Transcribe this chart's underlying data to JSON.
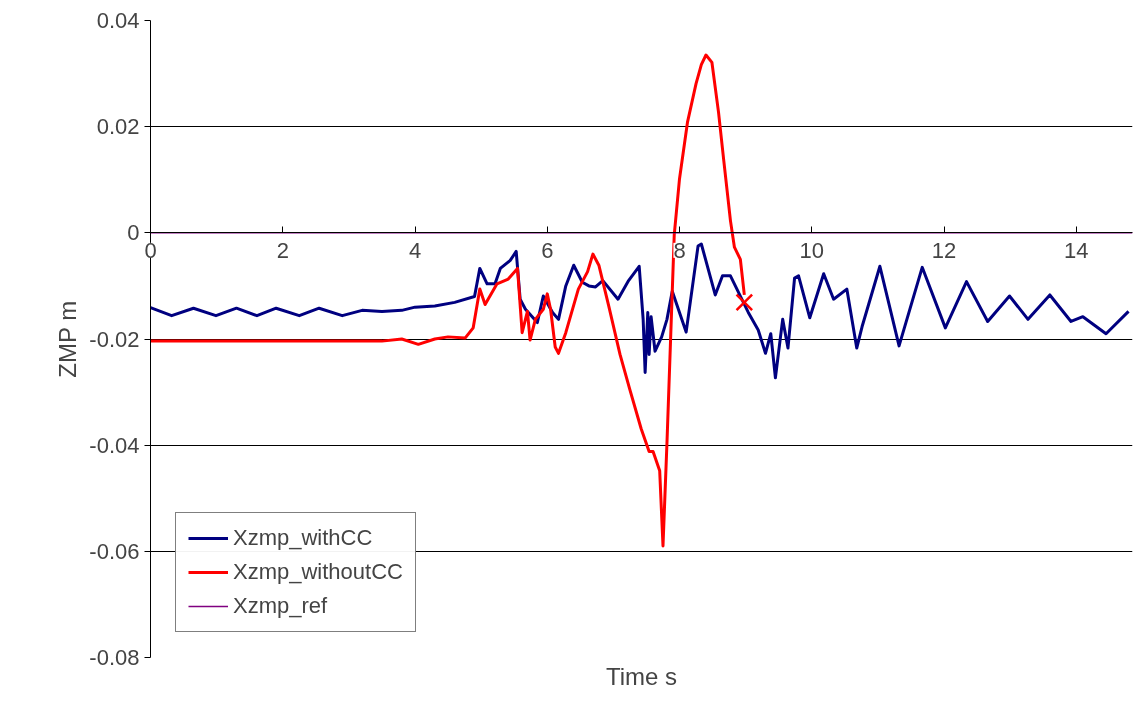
{
  "chart_data": {
    "type": "line",
    "xlabel": "Time s",
    "ylabel": "ZMP m",
    "xlim": [
      0,
      14.85
    ],
    "xticks": [
      0,
      2,
      4,
      6,
      8,
      10,
      12,
      14
    ],
    "ylim": [
      -0.08,
      0.04
    ],
    "yticks": [
      -0.08,
      -0.06,
      -0.04,
      -0.02,
      0,
      0.02,
      0.04
    ],
    "grid": "y",
    "legend": "bottom left",
    "marker": "none",
    "line_style": "solid",
    "series": [
      {
        "name": "Xzmp_withCC",
        "color": "#000080",
        "x": [
          0,
          0.32,
          0.65,
          0.99,
          1.3,
          1.61,
          1.9,
          2.25,
          2.55,
          2.9,
          3.2,
          3.5,
          3.8,
          4.0,
          4.3,
          4.6,
          4.9,
          4.98,
          5.09,
          5.21,
          5.29,
          5.44,
          5.53,
          5.59,
          5.67,
          5.85,
          5.94,
          6.08,
          6.17,
          6.28,
          6.4,
          6.53,
          6.63,
          6.73,
          6.84,
          7.07,
          7.23,
          7.39,
          7.45,
          7.48,
          7.52,
          7.54,
          7.57,
          7.63,
          7.73,
          7.81,
          7.89,
          8.1,
          8.28,
          8.33,
          8.54,
          8.65,
          8.77,
          9.04,
          9.19,
          9.3,
          9.38,
          9.45,
          9.56,
          9.64,
          9.74,
          9.8,
          9.97,
          10.18,
          10.33,
          10.53,
          10.68,
          10.76,
          11.03,
          11.32,
          11.67,
          12.02,
          12.34,
          12.66,
          12.99,
          13.27,
          13.6,
          13.92,
          14.1,
          14.45,
          14.79
        ],
        "values": [
          -0.0141,
          -0.0156,
          -0.0142,
          -0.0156,
          -0.0142,
          -0.0156,
          -0.0142,
          -0.0156,
          -0.0142,
          -0.0156,
          -0.0146,
          -0.0148,
          -0.0146,
          -0.014,
          -0.0138,
          -0.0131,
          -0.012,
          -0.0067,
          -0.0096,
          -0.0096,
          -0.0067,
          -0.0052,
          -0.0035,
          -0.0125,
          -0.0144,
          -0.0169,
          -0.0119,
          -0.015,
          -0.0163,
          -0.01,
          -0.0061,
          -0.0093,
          -0.01,
          -0.0102,
          -0.009,
          -0.0125,
          -0.009,
          -0.0063,
          -0.0163,
          -0.0263,
          -0.015,
          -0.0229,
          -0.0158,
          -0.0223,
          -0.0196,
          -0.0163,
          -0.011,
          -0.0187,
          -0.0025,
          -0.0021,
          -0.0117,
          -0.0081,
          -0.0081,
          -0.015,
          -0.0183,
          -0.0227,
          -0.019,
          -0.0273,
          -0.0163,
          -0.0217,
          -0.0085,
          -0.0081,
          -0.016,
          -0.0077,
          -0.0125,
          -0.0106,
          -0.0217,
          -0.0177,
          -0.0063,
          -0.0213,
          -0.0065,
          -0.0179,
          -0.0092,
          -0.0167,
          -0.0119,
          -0.0163,
          -0.0117,
          -0.0167,
          -0.0158,
          -0.019,
          -0.0148
        ]
      },
      {
        "name": "Xzmp_withoutCC",
        "color": "#ff0000",
        "x": [
          0,
          1.0,
          2.0,
          3.0,
          3.5,
          3.8,
          4.05,
          4.3,
          4.5,
          4.76,
          4.88,
          4.98,
          5.06,
          5.24,
          5.41,
          5.55,
          5.62,
          5.7,
          5.74,
          5.82,
          5.94,
          6.0,
          6.05,
          6.12,
          6.17,
          6.28,
          6.47,
          6.61,
          6.69,
          6.78,
          6.93,
          7.1,
          7.25,
          7.42,
          7.54,
          7.6,
          7.7,
          7.75,
          7.81,
          7.92,
          8.0,
          8.12,
          8.25,
          8.33,
          8.4,
          8.49,
          8.59,
          8.67,
          8.77,
          8.83,
          8.92,
          8.98
        ],
        "values": [
          -0.0204,
          -0.0204,
          -0.0204,
          -0.0204,
          -0.0204,
          -0.02,
          -0.021,
          -0.02,
          -0.0196,
          -0.0198,
          -0.0179,
          -0.0106,
          -0.0135,
          -0.0096,
          -0.0087,
          -0.0067,
          -0.0188,
          -0.0148,
          -0.0202,
          -0.0163,
          -0.0144,
          -0.0115,
          -0.0144,
          -0.0215,
          -0.0227,
          -0.0188,
          -0.0106,
          -0.0073,
          -0.004,
          -0.0061,
          -0.0138,
          -0.0229,
          -0.0296,
          -0.0369,
          -0.0412,
          -0.0412,
          -0.0448,
          -0.059,
          -0.0396,
          -0.0004,
          0.0102,
          0.0208,
          0.0281,
          0.0317,
          0.0335,
          0.0321,
          0.0227,
          0.0135,
          0.0023,
          -0.0027,
          -0.005,
          -0.0117
        ]
      },
      {
        "type": "scatter",
        "marker": "cross",
        "color": "#ff0000",
        "x": [
          8.98
        ],
        "values": [
          -0.0131
        ]
      },
      {
        "name": "Xzmp_ref",
        "color": "#800080",
        "x": [
          0,
          14.85
        ],
        "values": [
          0,
          0
        ]
      }
    ]
  }
}
